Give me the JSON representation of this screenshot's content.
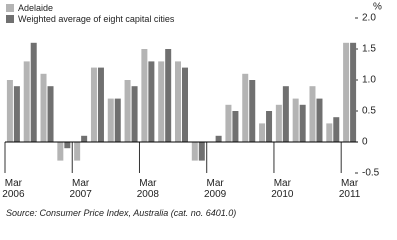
{
  "chart_data": {
    "type": "bar",
    "y_label": "%",
    "source": "Source: Consumer Price Index, Australia (cat. no. 6401.0)",
    "categories": [
      "Mar 2006",
      null,
      null,
      null,
      "Mar 2007",
      null,
      null,
      null,
      "Mar 2008",
      null,
      null,
      null,
      "Mar 2009",
      null,
      null,
      null,
      "Mar 2010",
      null,
      null,
      null,
      "Mar 2011"
    ],
    "series": [
      {
        "name": "Adelaide",
        "color": "#b4b4b4",
        "values": [
          1.0,
          1.3,
          1.1,
          -0.3,
          -0.3,
          1.2,
          0.7,
          1.0,
          1.5,
          1.3,
          1.3,
          -0.3,
          0.0,
          0.6,
          1.1,
          0.3,
          0.6,
          0.7,
          0.9,
          0.3,
          1.6
        ]
      },
      {
        "name": "Weighted average of eight capital cities",
        "color": "#707070",
        "values": [
          0.9,
          1.6,
          0.9,
          -0.1,
          0.1,
          1.2,
          0.7,
          0.9,
          1.3,
          1.5,
          1.2,
          -0.3,
          0.1,
          0.5,
          1.0,
          0.5,
          0.9,
          0.6,
          0.7,
          0.4,
          1.6
        ]
      }
    ],
    "ylim": [
      -0.5,
      2.0
    ],
    "yticks": [
      {
        "value": 2,
        "label": "2.0"
      },
      1.5,
      {
        "value": 1,
        "label": "1.0"
      },
      0.5,
      0,
      -0.5
    ],
    "legend": "top-left",
    "grid": false
  }
}
